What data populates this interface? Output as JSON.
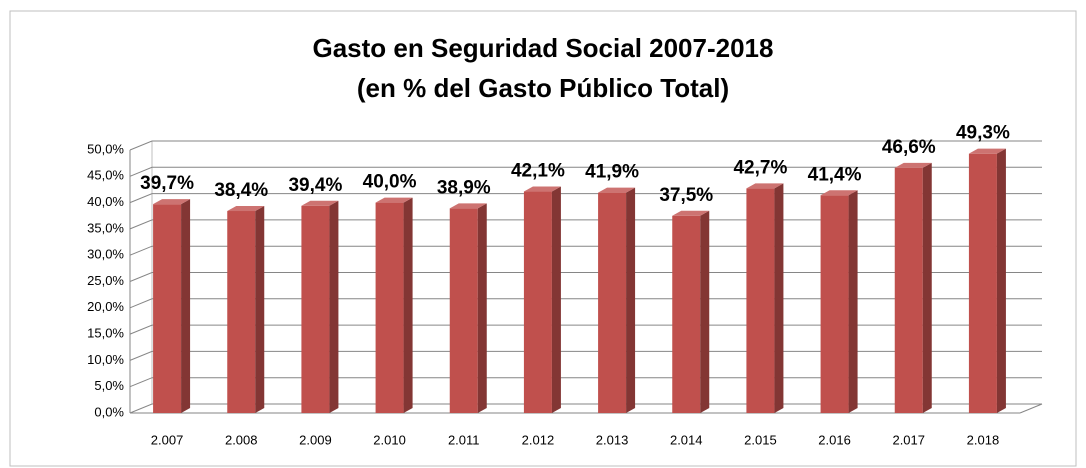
{
  "chart_data": {
    "type": "bar3d",
    "title": "Gasto en Seguridad Social 2007-2018",
    "subtitle": "(en % del Gasto Público Total)",
    "categories": [
      "2.007",
      "2.008",
      "2.009",
      "2.010",
      "2.011",
      "2.012",
      "2.013",
      "2.014",
      "2.015",
      "2.016",
      "2.017",
      "2.018"
    ],
    "values": [
      39.7,
      38.4,
      39.4,
      40.0,
      38.9,
      42.1,
      41.9,
      37.5,
      42.7,
      41.4,
      46.6,
      49.3
    ],
    "value_labels": [
      "39,7%",
      "38,4%",
      "39,4%",
      "40,0%",
      "38,9%",
      "42,1%",
      "41,9%",
      "37,5%",
      "42,7%",
      "41,4%",
      "46,6%",
      "49,3%"
    ],
    "color": "#c0504d",
    "ylim": [
      0,
      50
    ],
    "yticks": [
      {
        "value": 0,
        "label": "0,0%"
      },
      {
        "value": 5,
        "label": "5,0%"
      },
      {
        "value": 10,
        "label": "10,0%"
      },
      {
        "value": 15,
        "label": "15,0%"
      },
      {
        "value": 20,
        "label": "20,0%"
      },
      {
        "value": 25,
        "label": "25,0%"
      },
      {
        "value": 30,
        "label": "30,0%"
      },
      {
        "value": 35,
        "label": "35,0%"
      },
      {
        "value": 40,
        "label": "40,0%"
      },
      {
        "value": 45,
        "label": "45,0%"
      },
      {
        "value": 50,
        "label": "50,0%"
      }
    ],
    "grid": true
  }
}
